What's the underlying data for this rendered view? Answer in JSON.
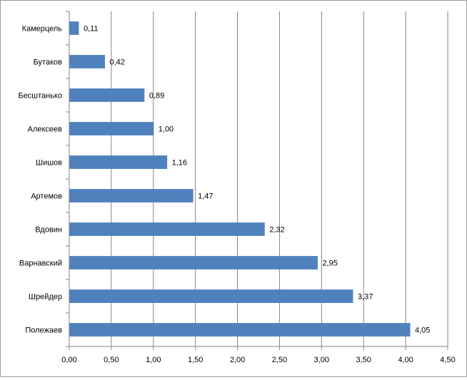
{
  "chart_data": {
    "type": "bar",
    "orientation": "horizontal",
    "title": "",
    "xlabel": "",
    "ylabel": "",
    "categories": [
      "Камерцель",
      "Бутаков",
      "Бесштанько",
      "Алексеев",
      "Шишов",
      "Артемов",
      "Вдовин",
      "Варнавский",
      "Шрейдер",
      "Полежаев"
    ],
    "values": [
      0.11,
      0.42,
      0.89,
      1.0,
      1.16,
      1.47,
      2.32,
      2.95,
      3.37,
      4.05
    ],
    "value_labels": [
      "0,11",
      "0,42",
      "0,89",
      "1,00",
      "1,16",
      "1,47",
      "2,32",
      "2,95",
      "3,37",
      "4,05"
    ],
    "xlim": [
      0,
      4.5
    ],
    "x_ticks": [
      0,
      0.5,
      1.0,
      1.5,
      2.0,
      2.5,
      3.0,
      3.5,
      4.0,
      4.5
    ],
    "x_tick_labels": [
      "0,00",
      "0,50",
      "1,00",
      "1,50",
      "2,00",
      "2,50",
      "3,00",
      "3,50",
      "4,00",
      "4,50"
    ],
    "grid": "vertical",
    "legend": "none",
    "bar_color": "#4f81bd",
    "grid_color": "#868686"
  }
}
